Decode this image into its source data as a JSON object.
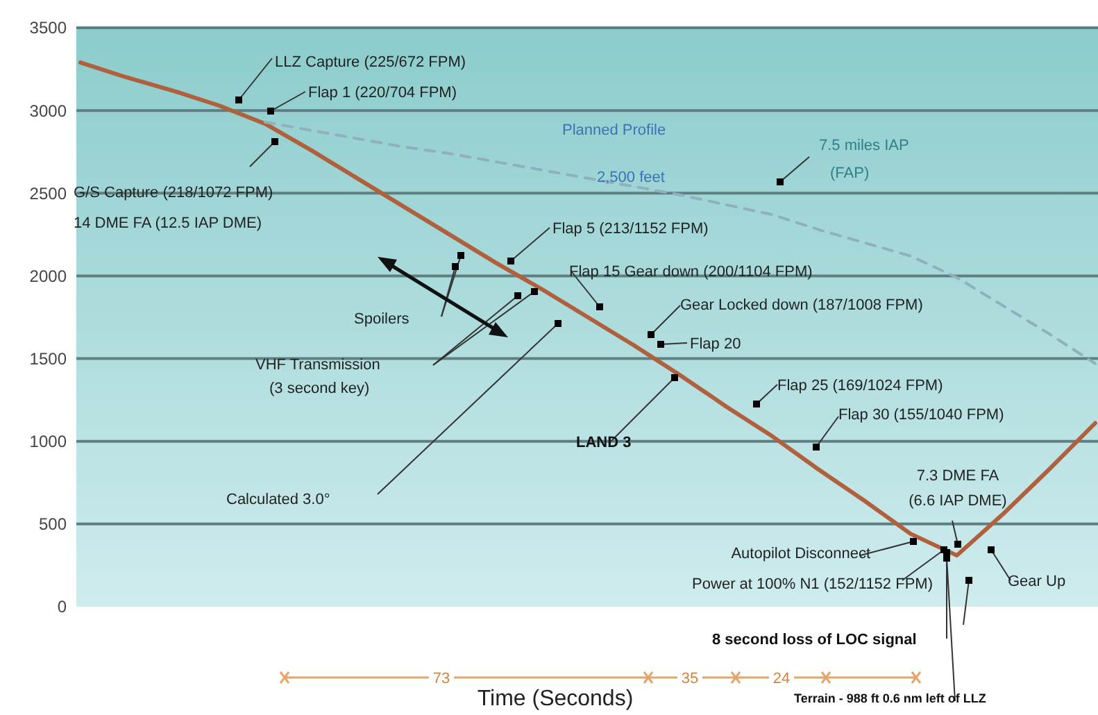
{
  "chart_data": {
    "type": "line",
    "xlabel": "Time (Seconds)",
    "categories": [
      null,
      null,
      null,
      null,
      null,
      null,
      null,
      null,
      null,
      null,
      null,
      null,
      null,
      null,
      null,
      null,
      null,
      null,
      null,
      null,
      null,
      null,
      null
    ],
    "series": [
      {
        "color": "#b0603c",
        "values": [
          3290,
          3200,
          3120,
          3030,
          2920,
          2760,
          2590,
          2420,
          2250,
          2080,
          1920,
          1750,
          1580,
          1400,
          1210,
          1030,
          830,
          640,
          440,
          310,
          560,
          830,
          1110
        ]
      },
      {
        "name": "Planned Profile",
        "color": "#8fb0bd",
        "line_style": "dashed",
        "values": [
          null,
          null,
          null,
          null,
          2930,
          2880,
          2830,
          2780,
          2740,
          2690,
          2640,
          2590,
          2540,
          2490,
          2430,
          2370,
          2280,
          2200,
          2120,
          1990,
          1820,
          1650,
          1470
        ]
      }
    ],
    "ylim": [
      0,
      3500
    ],
    "yticks": [
      0,
      500,
      1000,
      1500,
      2000,
      2500,
      3000,
      3500
    ],
    "grid": "y",
    "legend": false,
    "tick_labels": "y",
    "annotations": [
      "LLZ Capture (225/672 FPM)",
      "Flap 1 (220/704 FPM)",
      "G/S Capture (218/1072 FPM)",
      "14 DME FA (12.5 IAP DME)",
      "2,500 feet",
      "7.5 miles IAP",
      "(FAP)",
      "Flap 5 (213/1152 FPM)",
      "Flap 15 Gear down (200/1104 FPM)",
      "Gear Locked down (187/1008 FPM)",
      "Flap 20",
      "Spoilers",
      "VHF Transmission",
      "(3 second key)",
      "LAND 3",
      "Flap 25 (169/1024 FPM)",
      "Flap 30 (155/1040 FPM)",
      "Calculated 3.0°",
      "7.3 DME FA",
      "(6.6 IAP DME)",
      "Autopilot Disconnect",
      "Power at 100% N1 (152/1152 FPM)",
      "Gear Up",
      "8 second loss of LOC signal",
      "Terrain - 988 ft 0.6 nm left of LLZ",
      "73",
      "35",
      "24"
    ]
  }
}
